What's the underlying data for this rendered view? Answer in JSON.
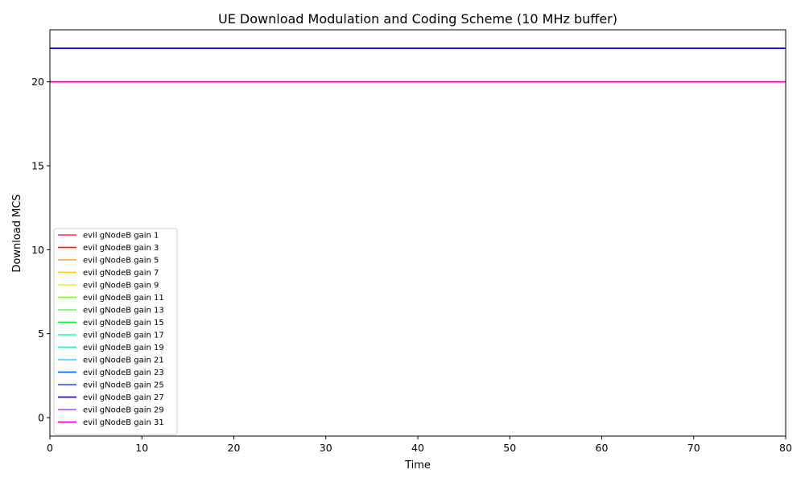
{
  "chart_data": {
    "type": "line",
    "title": "UE Download Modulation and Coding Scheme (10 MHz buffer)",
    "xlabel": "Time",
    "ylabel": "Download MCS",
    "xlim": [
      0,
      80
    ],
    "ylim": [
      -1.1,
      23.1
    ],
    "xticks": [
      0,
      10,
      20,
      30,
      40,
      50,
      60,
      70,
      80
    ],
    "yticks": [
      0,
      5,
      10,
      15,
      20
    ],
    "grid": false,
    "legend": "lower-left",
    "series": [
      {
        "name": "evil gNodeB gain 1",
        "color": "#ff0029",
        "x": [
          0,
          80
        ],
        "y": [
          22,
          22
        ]
      },
      {
        "name": "evil gNodeB gain 3",
        "color": "#ff2b00",
        "x": [
          0,
          80
        ],
        "y": [
          22,
          22
        ]
      },
      {
        "name": "evil gNodeB gain 5",
        "color": "#ff8800",
        "x": [
          0,
          80
        ],
        "y": [
          22,
          22
        ]
      },
      {
        "name": "evil gNodeB gain 7",
        "color": "#ffcf00",
        "x": [
          0,
          80
        ],
        "y": [
          22,
          22
        ]
      },
      {
        "name": "evil gNodeB gain 9",
        "color": "#d4f000",
        "x": [
          0,
          80
        ],
        "y": [
          22,
          22
        ]
      },
      {
        "name": "evil gNodeB gain 11",
        "color": "#84ff00",
        "x": [
          0,
          80
        ],
        "y": [
          22,
          22
        ]
      },
      {
        "name": "evil gNodeB gain 13",
        "color": "#37ff2a",
        "x": [
          0,
          80
        ],
        "y": [
          22,
          22
        ]
      },
      {
        "name": "evil gNodeB gain 15",
        "color": "#00ff38",
        "x": [
          0,
          80
        ],
        "y": [
          22,
          22
        ]
      },
      {
        "name": "evil gNodeB gain 17",
        "color": "#00ff8c",
        "x": [
          0,
          80
        ],
        "y": [
          22,
          22
        ]
      },
      {
        "name": "evil gNodeB gain 19",
        "color": "#00ffd8",
        "x": [
          0,
          80
        ],
        "y": [
          22,
          22
        ]
      },
      {
        "name": "evil gNodeB gain 21",
        "color": "#00c8ff",
        "x": [
          0,
          80
        ],
        "y": [
          22,
          22
        ]
      },
      {
        "name": "evil gNodeB gain 23",
        "color": "#0074ff",
        "x": [
          0,
          80
        ],
        "y": [
          22,
          22
        ]
      },
      {
        "name": "evil gNodeB gain 25",
        "color": "#0027ff",
        "x": [
          0,
          80
        ],
        "y": [
          22,
          22
        ]
      },
      {
        "name": "evil gNodeB gain 27",
        "color": "#2d00ff",
        "x": [
          0,
          80
        ],
        "y": [
          22,
          22
        ]
      },
      {
        "name": "evil gNodeB gain 29",
        "color": "#a020f0",
        "x": [
          0,
          80
        ],
        "y": [
          20,
          20
        ]
      },
      {
        "name": "evil gNodeB gain 31",
        "color": "#ff00e0",
        "x": [
          0,
          80
        ],
        "y": [
          20,
          20
        ]
      }
    ]
  }
}
